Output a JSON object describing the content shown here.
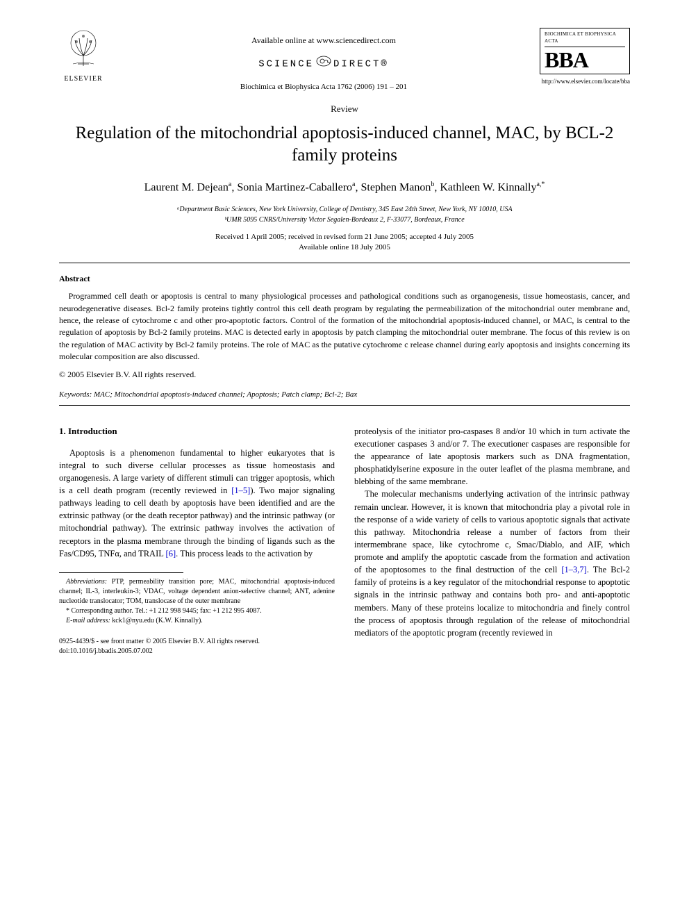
{
  "header": {
    "available_online": "Available online at www.sciencedirect.com",
    "sciencedirect_left": "SCIENCE",
    "sciencedirect_right": "DIRECT®",
    "journal_citation": "Biochimica et Biophysica Acta 1762 (2006) 191 – 201",
    "elsevier_label": "ELSEVIER",
    "bba_top": "BIOCHIMICA ET BIOPHYSICA ACTA",
    "bba_big": "BBA",
    "bba_url": "http://www.elsevier.com/locate/bba"
  },
  "article": {
    "type_label": "Review",
    "title": "Regulation of the mitochondrial apoptosis-induced channel, MAC, by BCL-2 family proteins",
    "authors_html": "Laurent M. Dejean<sup>a</sup>, Sonia Martinez-Caballero<sup>a</sup>, Stephen Manon<sup>b</sup>, Kathleen W. Kinnally<sup>a,*</sup>",
    "affiliation_a": "ᵃDepartment Basic Sciences, New York University, College of Dentistry, 345 East 24th Street, New York, NY 10010, USA",
    "affiliation_b": "ᵇUMR 5095 CNRS/University Victor Segalen-Bordeaux 2, F-33077, Bordeaux, France",
    "dates_line1": "Received 1 April 2005; received in revised form 21 June 2005; accepted 4 July 2005",
    "dates_line2": "Available online 18 July 2005"
  },
  "abstract": {
    "heading": "Abstract",
    "text": "Programmed cell death or apoptosis is central to many physiological processes and pathological conditions such as organogenesis, tissue homeostasis, cancer, and neurodegenerative diseases. Bcl-2 family proteins tightly control this cell death program by regulating the permeabilization of the mitochondrial outer membrane and, hence, the release of cytochrome c and other pro-apoptotic factors. Control of the formation of the mitochondrial apoptosis-induced channel, or MAC, is central to the regulation of apoptosis by Bcl-2 family proteins. MAC is detected early in apoptosis by patch clamping the mitochondrial outer membrane. The focus of this review is on the regulation of MAC activity by Bcl-2 family proteins. The role of MAC as the putative cytochrome c release channel during early apoptosis and insights concerning its molecular composition are also discussed.",
    "copyright": "© 2005 Elsevier B.V. All rights reserved."
  },
  "keywords": {
    "label": "Keywords:",
    "list": "MAC; Mitochondrial apoptosis-induced channel; Apoptosis; Patch clamp; Bcl-2; Bax"
  },
  "body": {
    "section1_heading": "1. Introduction",
    "col_left_p1_a": "Apoptosis is a phenomenon fundamental to higher eukaryotes that is integral to such diverse cellular processes as tissue homeostasis and organogenesis. A large variety of different stimuli can trigger apoptosis, which is a cell death program (recently reviewed in ",
    "ref_1_5": "[1–5]",
    "col_left_p1_b": "). Two major signaling pathways leading to cell death by apoptosis have been identified and are the extrinsic pathway (or the death receptor pathway) and the intrinsic pathway (or mitochondrial pathway). The extrinsic pathway involves the activation of receptors in the plasma membrane through the binding of ligands such as the Fas/CD95, TNFα, and TRAIL ",
    "ref_6": "[6]",
    "col_left_p1_c": ". This process leads to the activation by",
    "col_right_p1": "proteolysis of the initiator pro-caspases 8 and/or 10 which in turn activate the executioner caspases 3 and/or 7. The executioner caspases are responsible for the appearance of late apoptosis markers such as DNA fragmentation, phosphatidylserine exposure in the outer leaflet of the plasma membrane, and blebbing of the same membrane.",
    "col_right_p2_a": "The molecular mechanisms underlying activation of the intrinsic pathway remain unclear. However, it is known that mitochondria play a pivotal role in the response of a wide variety of cells to various apoptotic signals that activate this pathway. Mitochondria release a number of factors from their intermembrane space, like cytochrome c, Smac/Diablo, and AIF, which promote and amplify the apoptotic cascade from the formation and activation of the apoptosomes to the final destruction of the cell ",
    "ref_1_3_7": "[1–3,7]",
    "col_right_p2_b": ". The Bcl-2 family of proteins is a key regulator of the mitochondrial response to apoptotic signals in the intrinsic pathway and contains both pro- and anti-apoptotic members. Many of these proteins localize to mitochondria and finely control the process of apoptosis through regulation of the release of mitochondrial mediators of the apoptotic program (recently reviewed in"
  },
  "footnotes": {
    "abbreviations_label": "Abbreviations:",
    "abbreviations_text": " PTP, permeability transition pore; MAC, mitochondrial apoptosis-induced channel; IL-3, interleukin-3; VDAC, voltage dependent anion-selective channel; ANT, adenine nucleotide translocator; TOM, translocase of the outer membrane",
    "corresponding": "* Corresponding author. Tel.: +1 212 998 9445; fax: +1 212 995 4087.",
    "email_label": "E-mail address:",
    "email_value": " kck1@nyu.edu (K.W. Kinnally)."
  },
  "footer": {
    "line1": "0925-4439/$ - see front matter © 2005 Elsevier B.V. All rights reserved.",
    "line2": "doi:10.1016/j.bbadis.2005.07.002"
  },
  "colors": {
    "text": "#000000",
    "link": "#0000cc",
    "background": "#ffffff"
  }
}
